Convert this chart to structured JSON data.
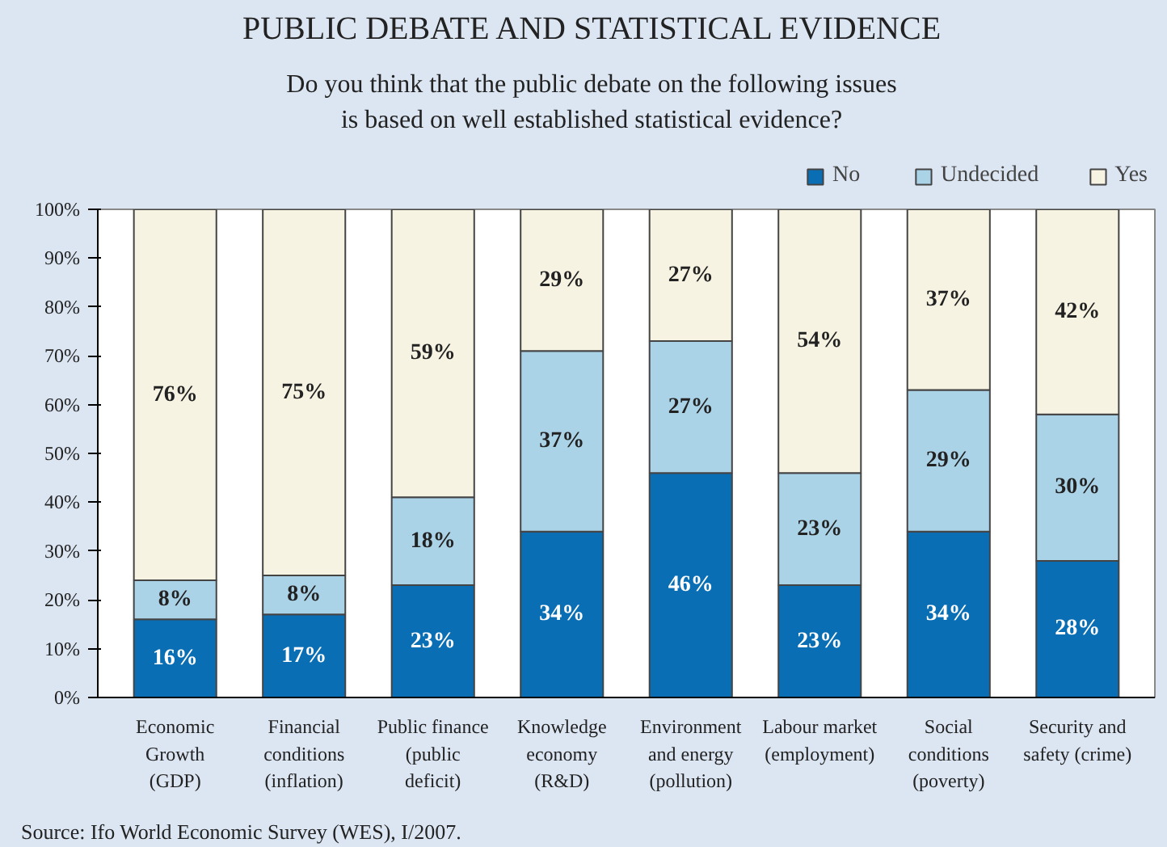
{
  "chart_data": {
    "type": "bar",
    "stacked": true,
    "title": "PUBLIC DEBATE AND STATISTICAL EVIDENCE",
    "subtitle": "Do you think that the public debate on the following issues\nis based on well established statistical evidence?",
    "categories": [
      "Economic\nGrowth\n(GDP)",
      "Financial\nconditions\n(inflation)",
      "Public finance\n(public\ndeficit)",
      "Knowledge\neconomy\n(R&D)",
      "Environment\nand energy\n(pollution)",
      "Labour market\n(employment)",
      "Social\nconditions\n(poverty)",
      "Security and\nsafety (crime)"
    ],
    "series": [
      {
        "name": "No",
        "color": "#0a6eb4",
        "values": [
          16,
          17,
          23,
          34,
          46,
          23,
          34,
          28
        ],
        "value_labels": [
          "16%",
          "17%",
          "23%",
          "34%",
          "46%",
          "23%",
          "34%",
          "28%"
        ]
      },
      {
        "name": "Undecided",
        "color": "#abd3e8",
        "values": [
          8,
          8,
          18,
          37,
          27,
          23,
          29,
          30
        ],
        "value_labels": [
          "8%",
          "8%",
          "18%",
          "37%",
          "27%",
          "23%",
          "29%",
          "30%"
        ]
      },
      {
        "name": "Yes",
        "color": "#f7f3e3",
        "values": [
          76,
          75,
          59,
          29,
          27,
          54,
          37,
          42
        ],
        "value_labels": [
          "76%",
          "75%",
          "59%",
          "29%",
          "27%",
          "54%",
          "37%",
          "42%"
        ]
      }
    ],
    "ylim": [
      0,
      100
    ],
    "yticks": [
      {
        "value": 0,
        "label": "0%"
      },
      {
        "value": 10,
        "label": "10%"
      },
      {
        "value": 20,
        "label": "20%"
      },
      {
        "value": 30,
        "label": "30%"
      },
      {
        "value": 40,
        "label": "40%"
      },
      {
        "value": 50,
        "label": "50%"
      },
      {
        "value": 60,
        "label": "60%"
      },
      {
        "value": 70,
        "label": "70%"
      },
      {
        "value": 80,
        "label": "80%"
      },
      {
        "value": 90,
        "label": "90%"
      },
      {
        "value": 100,
        "label": "100%"
      }
    ],
    "grid": false,
    "legend": "top right",
    "annotations": [
      "Source: Ifo World Economic Survey (WES), I/2007."
    ]
  }
}
